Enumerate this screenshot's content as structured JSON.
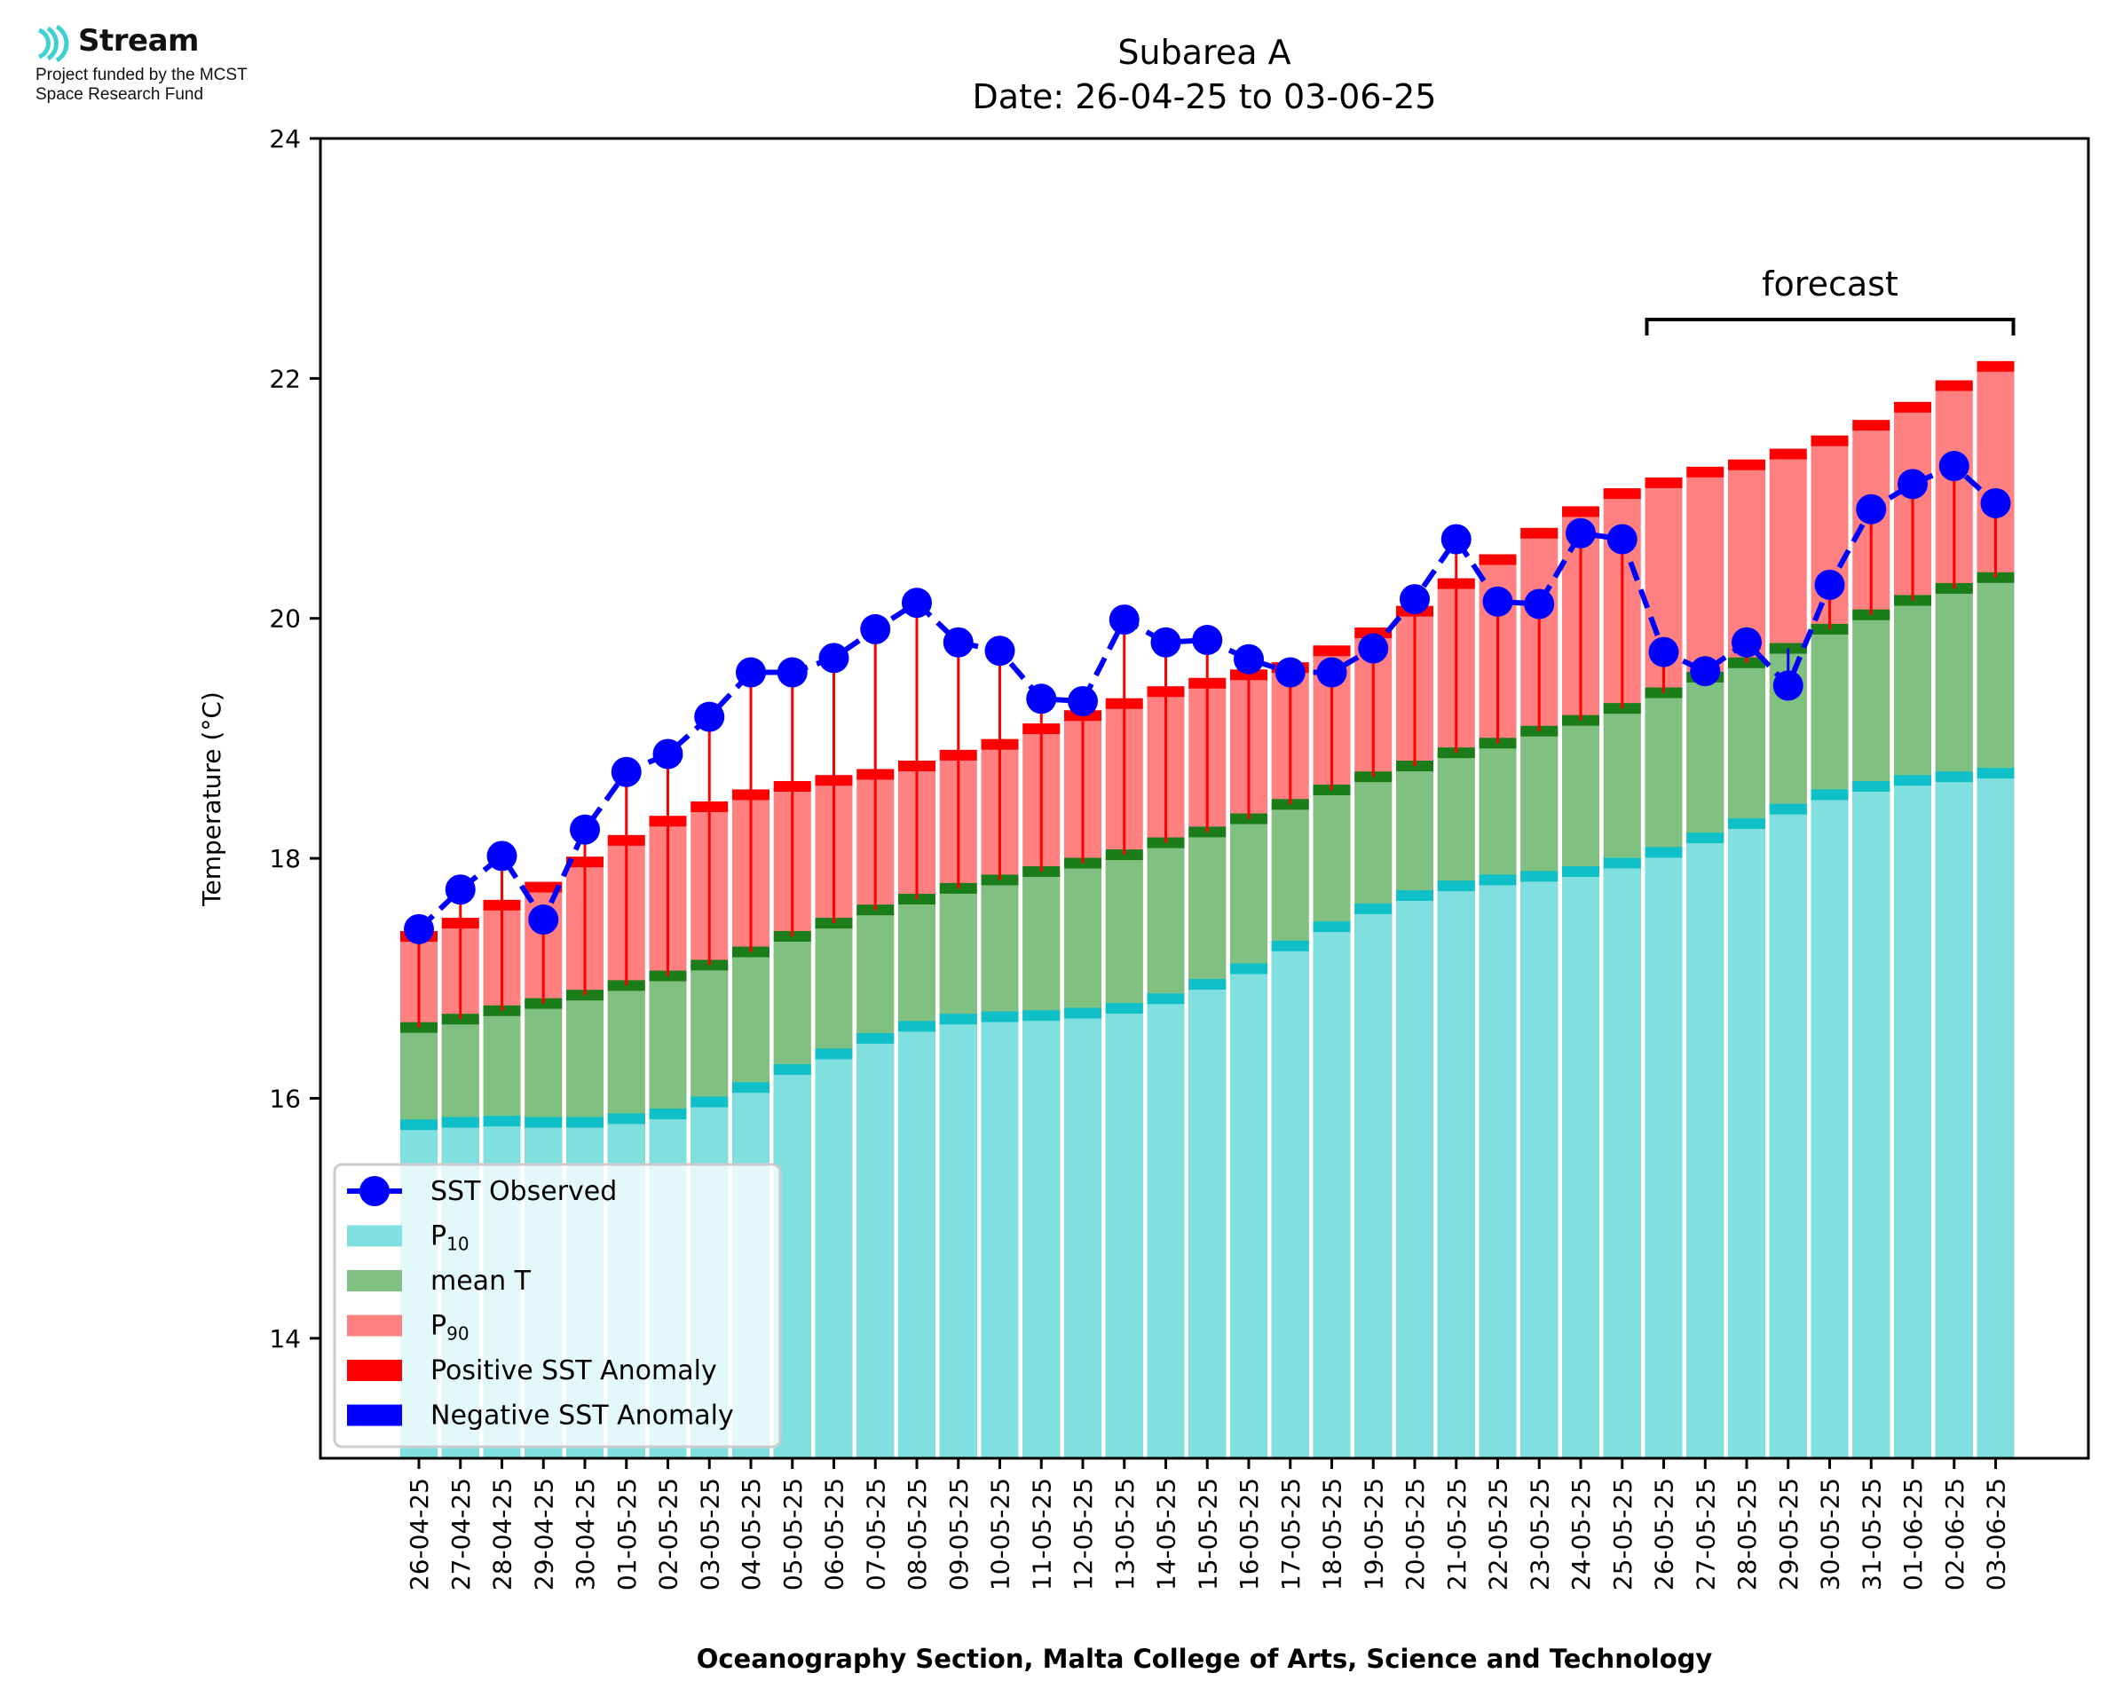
{
  "logo": {
    "name": "Stream",
    "line1": "Project funded by the MCST",
    "line2": "Space Research Fund",
    "color": "#3fd0d0"
  },
  "chart_data": {
    "type": "bar",
    "title": "Subarea A",
    "subtitle": "Date: 26-04-25 to 03-06-25",
    "xlabel": "Oceanography Section, Malta College of Arts, Science and Technology",
    "ylabel": "Temperature (°C)",
    "ylim": [
      13,
      24
    ],
    "yticks": [
      14,
      16,
      18,
      20,
      22,
      24
    ],
    "grid": false,
    "legend_position": "lower-left",
    "annotation": {
      "text": "forecast",
      "from": "26-05-25",
      "to": "03-06-25"
    },
    "categories": [
      "26-04-25",
      "27-04-25",
      "28-04-25",
      "29-04-25",
      "30-04-25",
      "01-05-25",
      "02-05-25",
      "03-05-25",
      "04-05-25",
      "05-05-25",
      "06-05-25",
      "07-05-25",
      "08-05-25",
      "09-05-25",
      "10-05-25",
      "11-05-25",
      "12-05-25",
      "13-05-25",
      "14-05-25",
      "15-05-25",
      "16-05-25",
      "17-05-25",
      "18-05-25",
      "19-05-25",
      "20-05-25",
      "21-05-25",
      "22-05-25",
      "23-05-25",
      "24-05-25",
      "25-05-25",
      "26-05-25",
      "27-05-25",
      "28-05-25",
      "29-05-25",
      "30-05-25",
      "31-05-25",
      "01-06-25",
      "02-06-25",
      "03-06-25"
    ],
    "series": [
      {
        "name": "P10",
        "kind": "bar",
        "color": "#80dfdf",
        "edge": "#10c0c8",
        "values": [
          15.78,
          15.8,
          15.81,
          15.8,
          15.8,
          15.83,
          15.87,
          15.97,
          16.09,
          16.24,
          16.37,
          16.5,
          16.6,
          16.66,
          16.68,
          16.69,
          16.71,
          16.75,
          16.83,
          16.95,
          17.08,
          17.27,
          17.43,
          17.58,
          17.69,
          17.77,
          17.82,
          17.85,
          17.89,
          17.96,
          18.05,
          18.17,
          18.29,
          18.41,
          18.53,
          18.6,
          18.65,
          18.68,
          18.71
        ]
      },
      {
        "name": "mean T",
        "kind": "bar",
        "color": "#80c080",
        "edge": "#1a7d1a",
        "values": [
          16.59,
          16.66,
          16.73,
          16.79,
          16.86,
          16.94,
          17.02,
          17.11,
          17.22,
          17.35,
          17.46,
          17.57,
          17.66,
          17.75,
          17.82,
          17.89,
          17.96,
          18.03,
          18.13,
          18.22,
          18.33,
          18.45,
          18.57,
          18.68,
          18.77,
          18.88,
          18.96,
          19.06,
          19.15,
          19.25,
          19.38,
          19.51,
          19.63,
          19.75,
          19.91,
          20.03,
          20.15,
          20.25,
          20.34
        ]
      },
      {
        "name": "P90",
        "kind": "bar",
        "color": "#ff8080",
        "edge": "#ff0000",
        "values": [
          17.35,
          17.46,
          17.61,
          17.76,
          17.97,
          18.15,
          18.31,
          18.43,
          18.53,
          18.6,
          18.65,
          18.7,
          18.77,
          18.86,
          18.95,
          19.08,
          19.19,
          19.29,
          19.39,
          19.46,
          19.53,
          19.59,
          19.73,
          19.88,
          20.06,
          20.29,
          20.49,
          20.71,
          20.89,
          21.04,
          21.13,
          21.22,
          21.28,
          21.37,
          21.48,
          21.61,
          21.76,
          21.94,
          22.1
        ]
      },
      {
        "name": "SST Observed",
        "kind": "line",
        "color": "#0000ff",
        "values": [
          17.41,
          17.74,
          18.02,
          17.49,
          18.24,
          18.72,
          18.87,
          19.18,
          19.55,
          19.55,
          19.67,
          19.91,
          20.13,
          19.8,
          19.73,
          19.33,
          19.31,
          19.99,
          19.8,
          19.82,
          19.66,
          19.55,
          19.55,
          19.75,
          20.16,
          20.66,
          20.14,
          20.12,
          20.71,
          20.66,
          19.72,
          19.56,
          19.8,
          19.44,
          20.28,
          20.91,
          21.12,
          21.27,
          20.96
        ]
      }
    ],
    "legend": [
      {
        "label": "SST Observed",
        "kind": "line",
        "color": "#0000ff"
      },
      {
        "label": "P",
        "sub": "10",
        "kind": "patch",
        "color": "#80dfdf"
      },
      {
        "label": "mean T",
        "kind": "patch",
        "color": "#80c080"
      },
      {
        "label": "P",
        "sub": "90",
        "kind": "patch",
        "color": "#ff8080"
      },
      {
        "label": "Positive SST Anomaly",
        "kind": "patch",
        "color": "#ff0000"
      },
      {
        "label": "Negative SST Anomaly",
        "kind": "patch",
        "color": "#0000ff"
      }
    ],
    "anomaly_colors": {
      "positive": "#ff0000",
      "negative": "#0000ff"
    }
  }
}
